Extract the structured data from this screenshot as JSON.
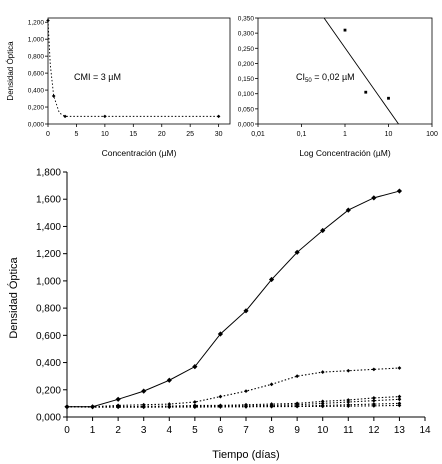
{
  "chart_data": [
    {
      "type": "scatter",
      "ylabel": "Densidad Óptica",
      "xlabel": "Concentración (µM)",
      "annotation": "CMI = 3 µM",
      "xlim": [
        0,
        32
      ],
      "ylim": [
        0,
        1.25
      ],
      "x_ticks": [
        0,
        5,
        10,
        15,
        20,
        25,
        30
      ],
      "x_tick_labels": [
        "0",
        "5",
        "10",
        "15",
        "20",
        "25",
        "30"
      ],
      "y_ticks": [
        0,
        0.2,
        0.4,
        0.6,
        0.8,
        1.0,
        1.2
      ],
      "y_tick_labels": [
        "0,000",
        "0,200",
        "0,400",
        "0,600",
        "0,800",
        "1,000",
        "1,200"
      ],
      "points": [
        [
          0,
          1.22
        ],
        [
          1,
          0.33
        ],
        [
          3,
          0.09
        ],
        [
          10,
          0.09
        ],
        [
          30,
          0.09
        ]
      ],
      "curve": [
        [
          0,
          1.22
        ],
        [
          0.4,
          0.7
        ],
        [
          1,
          0.33
        ],
        [
          2,
          0.13
        ],
        [
          3,
          0.09
        ],
        [
          10,
          0.09
        ],
        [
          20,
          0.09
        ],
        [
          30,
          0.09
        ]
      ]
    },
    {
      "type": "scatter",
      "xlabel": "Log Concentración (µM)",
      "annotation": "CI",
      "annotation_sub": "50",
      "annotation_tail": " = 0,02 µM",
      "x_scale": "log",
      "xlim": [
        0.01,
        100
      ],
      "ylim": [
        0,
        0.35
      ],
      "x_ticks": [
        0.01,
        0.1,
        1,
        10,
        100
      ],
      "x_tick_labels": [
        "0,01",
        "0,1",
        "1",
        "10",
        "100"
      ],
      "y_ticks": [
        0,
        0.05,
        0.1,
        0.15,
        0.2,
        0.25,
        0.3,
        0.35
      ],
      "y_tick_labels": [
        "0,000",
        "0,050",
        "0,100",
        "0,150",
        "0,200",
        "0,250",
        "0,300",
        "0,350"
      ],
      "points": [
        [
          1,
          0.31
        ],
        [
          3,
          0.105
        ],
        [
          10,
          0.085
        ]
      ],
      "fit_line": [
        [
          0.33,
          0.35
        ],
        [
          17,
          0.0
        ]
      ]
    },
    {
      "type": "line",
      "ylabel": "Densidad Óptica",
      "xlabel": "Tiempo (días)",
      "xlim": [
        0,
        14
      ],
      "ylim": [
        0,
        1.8
      ],
      "x_ticks": [
        0,
        1,
        2,
        3,
        4,
        5,
        6,
        7,
        8,
        9,
        10,
        11,
        12,
        13,
        14
      ],
      "x_tick_labels": [
        "0",
        "1",
        "2",
        "3",
        "4",
        "5",
        "6",
        "7",
        "8",
        "9",
        "10",
        "11",
        "12",
        "13",
        "14"
      ],
      "y_ticks": [
        0,
        0.2,
        0.4,
        0.6,
        0.8,
        1.0,
        1.2,
        1.4,
        1.6,
        1.8
      ],
      "y_tick_labels": [
        "0,000",
        "0,200",
        "0,400",
        "0,600",
        "0,800",
        "1,000",
        "1,200",
        "1,400",
        "1,600",
        "1,800"
      ],
      "x": [
        0,
        1,
        2,
        3,
        4,
        5,
        6,
        7,
        8,
        9,
        10,
        11,
        12,
        13
      ],
      "series": [
        {
          "values": [
            0.075,
            0.075,
            0.13,
            0.19,
            0.27,
            0.37,
            0.61,
            0.78,
            1.01,
            1.21,
            1.37,
            1.52,
            1.61,
            1.66
          ],
          "style": "solid"
        },
        {
          "values": [
            0.075,
            0.075,
            0.085,
            0.09,
            0.095,
            0.11,
            0.15,
            0.19,
            0.24,
            0.3,
            0.33,
            0.34,
            0.35,
            0.36
          ],
          "style": "dotted"
        },
        {
          "values": [
            0.075,
            0.075,
            0.075,
            0.078,
            0.08,
            0.085,
            0.085,
            0.09,
            0.095,
            0.1,
            0.115,
            0.125,
            0.14,
            0.15
          ],
          "style": "dotted"
        },
        {
          "values": [
            0.075,
            0.075,
            0.075,
            0.075,
            0.077,
            0.078,
            0.08,
            0.082,
            0.085,
            0.09,
            0.1,
            0.11,
            0.12,
            0.13
          ],
          "style": "dotted"
        },
        {
          "values": [
            0.075,
            0.075,
            0.075,
            0.075,
            0.075,
            0.075,
            0.076,
            0.077,
            0.078,
            0.08,
            0.085,
            0.09,
            0.095,
            0.1
          ],
          "style": "dotted"
        },
        {
          "values": [
            0.075,
            0.072,
            0.072,
            0.072,
            0.073,
            0.073,
            0.074,
            0.075,
            0.076,
            0.077,
            0.078,
            0.08,
            0.082,
            0.085
          ],
          "style": "dotted"
        }
      ]
    }
  ]
}
